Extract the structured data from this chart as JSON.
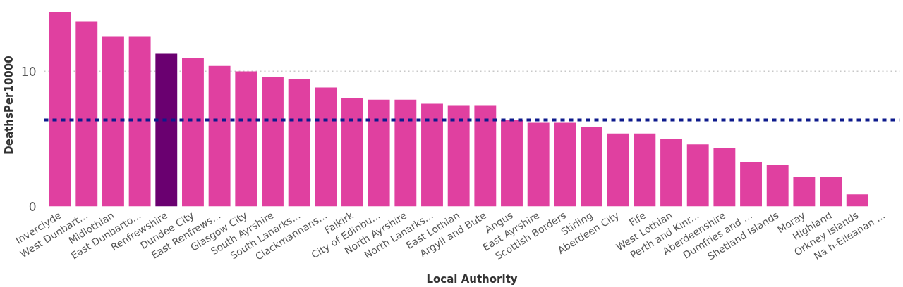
{
  "chart_data": {
    "type": "bar",
    "xlabel": "Local Authority",
    "ylabel": "DeathsPer10000",
    "categories": [
      "Inverclyde",
      "West Dunbart...",
      "Midlothian",
      "East Dunbarto...",
      "Renfrewshire",
      "Dundee City",
      "East Renfrews...",
      "Glasgow City",
      "South Ayrshire",
      "South Lanarks...",
      "Clackmannans...",
      "Falkirk",
      "City of Edinbu...",
      "North Ayrshire",
      "North Lanarks...",
      "East Lothian",
      "Argyll and Bute",
      "Angus",
      "East Ayrshire",
      "Scottish Borders",
      "Stirling",
      "Aberdeen City",
      "Fife",
      "West Lothian",
      "Perth and Kinr...",
      "Aberdeenshire",
      "Dumfries and ...",
      "Shetland Islands",
      "Moray",
      "Highland",
      "Orkney Islands",
      "Na h-Eileanan ..."
    ],
    "values": [
      14.4,
      13.7,
      12.6,
      12.6,
      11.3,
      11.0,
      10.4,
      10.0,
      9.6,
      9.4,
      8.8,
      8.0,
      7.9,
      7.9,
      7.6,
      7.5,
      7.5,
      6.4,
      6.2,
      6.2,
      5.9,
      5.4,
      5.4,
      5.0,
      4.6,
      4.3,
      3.3,
      3.1,
      2.2,
      2.2,
      0.9,
      0
    ],
    "colors": [
      "#e040a0",
      "#e040a0",
      "#e040a0",
      "#e040a0",
      "#6a0070",
      "#e040a0",
      "#e040a0",
      "#e040a0",
      "#e040a0",
      "#e040a0",
      "#e040a0",
      "#e040a0",
      "#e040a0",
      "#e040a0",
      "#e040a0",
      "#e040a0",
      "#e040a0",
      "#e040a0",
      "#e040a0",
      "#e040a0",
      "#e040a0",
      "#e040a0",
      "#e040a0",
      "#e040a0",
      "#e040a0",
      "#e040a0",
      "#e040a0",
      "#e040a0",
      "#e040a0",
      "#e040a0",
      "#e040a0",
      "#e040a0"
    ],
    "ylim": [
      0,
      15
    ],
    "yticks": [
      0,
      10
    ],
    "grid": "y",
    "ref_lines": [
      {
        "axis": "y",
        "value": 6.4,
        "color": "#0d1a8c",
        "line_style": "dashed"
      }
    ]
  }
}
